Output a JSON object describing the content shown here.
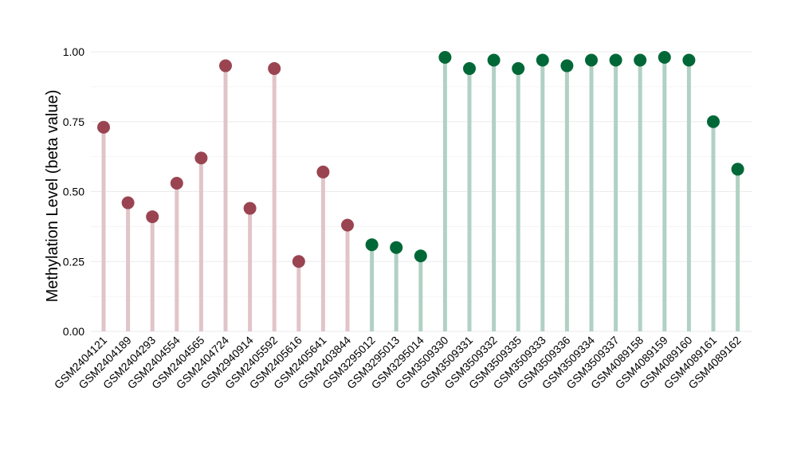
{
  "chart_data": {
    "type": "lollipop",
    "title": "",
    "xlabel": "",
    "ylabel": "Methylation Level (beta value)",
    "ylim": [
      0,
      1
    ],
    "y_ticks": [
      "0.00",
      "0.25",
      "0.50",
      "0.75",
      "1.00"
    ],
    "grid": true,
    "legend": "none",
    "categories": [
      "GSM2404121",
      "GSM2404189",
      "GSM2404293",
      "GSM2404554",
      "GSM2404565",
      "GSM2404724",
      "GSM2940914",
      "GSM2405592",
      "GSM2405616",
      "GSM2405641",
      "GSM2403844",
      "GSM3295012",
      "GSM3295013",
      "GSM3295014",
      "GSM3509330",
      "GSM3509331",
      "GSM3509332",
      "GSM3509335",
      "GSM3509333",
      "GSM3509336",
      "GSM3509334",
      "GSM3509337",
      "GSM4089158",
      "GSM4089159",
      "GSM4089160",
      "GSM4089161",
      "GSM4089162"
    ],
    "values": [
      0.73,
      0.46,
      0.41,
      0.53,
      0.62,
      0.95,
      0.44,
      0.94,
      0.25,
      0.57,
      0.38,
      0.31,
      0.3,
      0.27,
      0.98,
      0.94,
      0.97,
      0.94,
      0.97,
      0.95,
      0.97,
      0.97,
      0.97,
      0.98,
      0.97,
      0.75,
      0.58
    ],
    "groups": [
      0,
      0,
      0,
      0,
      0,
      0,
      0,
      0,
      0,
      0,
      0,
      1,
      1,
      1,
      1,
      1,
      1,
      1,
      1,
      1,
      1,
      1,
      1,
      1,
      1,
      1,
      1
    ],
    "colors": {
      "group0_point": "#9b4451",
      "group0_stem": "#e1c4c9",
      "group1_point": "#006837",
      "group1_stem": "#b0d1c3",
      "grid": "#ebebeb"
    }
  }
}
